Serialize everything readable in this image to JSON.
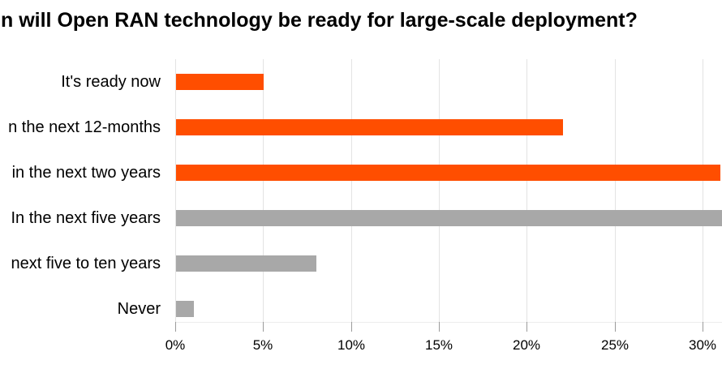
{
  "chart_data": {
    "type": "bar",
    "orientation": "horizontal",
    "title": "n will Open RAN technology be ready for large-scale deployment?",
    "categories": [
      "It's ready now",
      "n the next 12-months",
      "in the next two years",
      "In the next five years",
      "next five to ten years",
      "Never"
    ],
    "values": [
      5,
      22,
      31,
      31.5,
      8,
      1
    ],
    "bar_colors": [
      "#ff4e00",
      "#ff4e00",
      "#ff4e00",
      "#a8a8a8",
      "#a8a8a8",
      "#a8a8a8"
    ],
    "clipped_at_right_edge": [
      false,
      false,
      false,
      true,
      false,
      false
    ],
    "x_tick_labels": [
      "0%",
      "5%",
      "10%",
      "15%",
      "20%",
      "25%",
      "30%"
    ],
    "x_tick_values": [
      0,
      5,
      10,
      15,
      20,
      25,
      30
    ],
    "xlim_visible": [
      0,
      31.1
    ],
    "xlabel": "",
    "ylabel": "",
    "grid": "vertical-only",
    "legend": "none",
    "colors": {
      "accent_orange": "#ff4e00",
      "neutral_gray": "#a8a8a8",
      "gridline": "#e3e3e3",
      "tick": "#9b9b9b",
      "text": "#000000",
      "background": "#ffffff"
    }
  }
}
